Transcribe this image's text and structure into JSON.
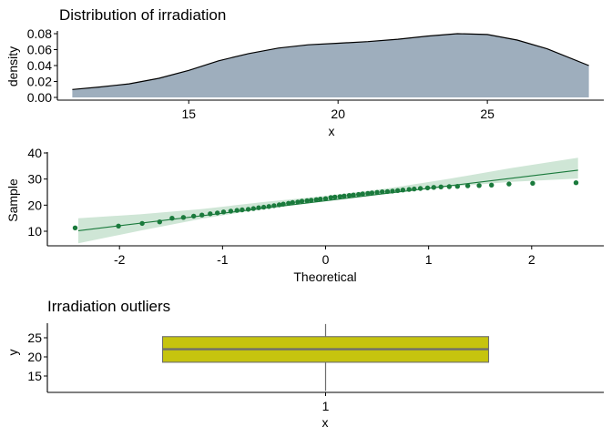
{
  "chart_data": [
    {
      "type": "area",
      "title": "Distribution of irradiation",
      "xlabel": "x",
      "ylabel": "density",
      "xlim": [
        10.6,
        28.9
      ],
      "ylim": [
        0,
        0.08
      ],
      "x_ticks": [
        15,
        20,
        25
      ],
      "x_tick_labels": [
        "15",
        "20",
        "25"
      ],
      "y_ticks": [
        0,
        0.02,
        0.04,
        0.06,
        0.08
      ],
      "y_tick_labels": [
        "0.00",
        "0.02",
        "0.04",
        "0.06",
        "0.08"
      ],
      "grid": false,
      "colors": {
        "fill": "#9eaebd",
        "line": "#000000"
      },
      "x": [
        11.1,
        12,
        13,
        14,
        15,
        16,
        17,
        18,
        19,
        20,
        21,
        22,
        23,
        24,
        25,
        26,
        27,
        28.4
      ],
      "y": [
        0.01,
        0.013,
        0.017,
        0.024,
        0.034,
        0.046,
        0.055,
        0.062,
        0.066,
        0.068,
        0.07,
        0.073,
        0.077,
        0.08,
        0.079,
        0.072,
        0.061,
        0.04
      ]
    },
    {
      "type": "scatter",
      "title": "",
      "xlabel": "Theoretical",
      "ylabel": "Sample",
      "xlim": [
        -2.7,
        2.7
      ],
      "ylim": [
        4.5,
        40
      ],
      "x_ticks": [
        -2,
        -1,
        0,
        1,
        2
      ],
      "x_tick_labels": [
        "-2",
        "-1",
        "0",
        "1",
        "2"
      ],
      "y_ticks": [
        10,
        20,
        30,
        40
      ],
      "y_tick_labels": [
        "10",
        "20",
        "30",
        "40"
      ],
      "grid": false,
      "colors": {
        "points": "#1a7a3c",
        "line": "#1a7a3c",
        "band": "#cfe6d6"
      },
      "theoretical": [
        -2.43,
        -2.01,
        -1.78,
        -1.61,
        -1.49,
        -1.38,
        -1.28,
        -1.2,
        -1.12,
        -1.05,
        -0.99,
        -0.92,
        -0.86,
        -0.81,
        -0.75,
        -0.7,
        -0.65,
        -0.6,
        -0.55,
        -0.5,
        -0.45,
        -0.41,
        -0.36,
        -0.32,
        -0.27,
        -0.23,
        -0.18,
        -0.14,
        -0.09,
        -0.05,
        0,
        0.05,
        0.09,
        0.14,
        0.18,
        0.23,
        0.27,
        0.32,
        0.36,
        0.41,
        0.45,
        0.5,
        0.55,
        0.6,
        0.65,
        0.7,
        0.75,
        0.81,
        0.86,
        0.92,
        0.99,
        1.05,
        1.12,
        1.2,
        1.28,
        1.38,
        1.49,
        1.61,
        1.78,
        2.01,
        2.43
      ],
      "sample": [
        11.3,
        12,
        13,
        13.6,
        15,
        15.3,
        15.8,
        16.2,
        16.7,
        17,
        17.4,
        17.7,
        18,
        18.2,
        18.4,
        18.7,
        19,
        19.2,
        19.5,
        19.8,
        20.1,
        20.4,
        20.7,
        21,
        21.2,
        21.5,
        21.7,
        21.9,
        22.1,
        22.3,
        22.5,
        22.9,
        23.1,
        23.3,
        23.5,
        23.7,
        23.9,
        24.1,
        24.3,
        24.5,
        24.7,
        24.9,
        25.1,
        25.2,
        25.4,
        25.6,
        25.8,
        26,
        26.2,
        26.4,
        26.6,
        26.8,
        27,
        27.1,
        27.2,
        27.4,
        27.5,
        27.7,
        28.1,
        28.4,
        28.6
      ],
      "reference_line": {
        "x": [
          -2.4,
          2.45
        ],
        "y": [
          10.2,
          33.4
        ]
      },
      "confidence_band": {
        "x": [
          -2.4,
          -1.8,
          -1.2,
          -0.6,
          0,
          0.6,
          1.2,
          1.8,
          2.45
        ],
        "lower": [
          5.4,
          10.2,
          14.8,
          18.6,
          21.6,
          24.4,
          27,
          28.9,
          30.2
        ],
        "upper": [
          15,
          16.5,
          18.5,
          21.2,
          23.5,
          26.4,
          30.1,
          34.2,
          38.2
        ]
      }
    },
    {
      "type": "box",
      "title": "Irradiation outliers",
      "xlabel": "x",
      "ylabel": "y",
      "categories": [
        "1"
      ],
      "ylim": [
        10.3,
        29.5
      ],
      "y_ticks": [
        15,
        20,
        25
      ],
      "y_tick_labels": [
        "15",
        "20",
        "25"
      ],
      "grid": false,
      "colors": {
        "box": "#c6c40e",
        "line": "#6e6e6e"
      },
      "boxes": [
        {
          "category": "1",
          "min": 11.1,
          "q1": 18.6,
          "median": 22,
          "q3": 25.3,
          "max": 28.6
        }
      ]
    }
  ]
}
